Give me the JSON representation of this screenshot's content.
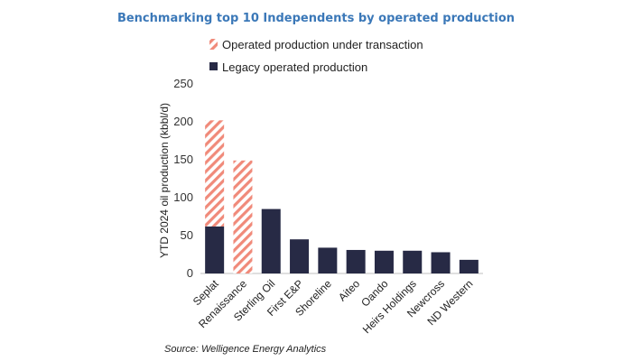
{
  "colors": {
    "title": "#3b78b8",
    "legacy": "#272a45",
    "transaction": "#f08a7a",
    "axis": "#bfbfbf"
  },
  "legend": {
    "transaction_label": "Operated production under transaction",
    "legacy_label": "Legacy operated production"
  },
  "source": "Source: Welligence Energy Analytics",
  "chart_data": {
    "type": "bar",
    "stacked": true,
    "title": "Benchmarking top 10 Independents by operated production",
    "xlabel": "",
    "ylabel": "YTD 2024 oil production (kbbl/d)",
    "ylim": [
      0,
      250
    ],
    "yticks": [
      0,
      50,
      100,
      150,
      200,
      250
    ],
    "grid": false,
    "legend_position": "top",
    "categories": [
      "Seplat",
      "Renaissance",
      "Sterling Oil",
      "First E&P",
      "Shoreline",
      "Aiteo",
      "Oando",
      "Heirs Holdings",
      "Newcross",
      "ND Western"
    ],
    "series": [
      {
        "name": "Legacy operated production",
        "values": [
          62,
          0,
          85,
          45,
          34,
          31,
          30,
          30,
          28,
          18
        ]
      },
      {
        "name": "Operated production under transaction",
        "values": [
          140,
          149,
          0,
          0,
          0,
          0,
          0,
          0,
          0,
          0
        ]
      }
    ]
  }
}
